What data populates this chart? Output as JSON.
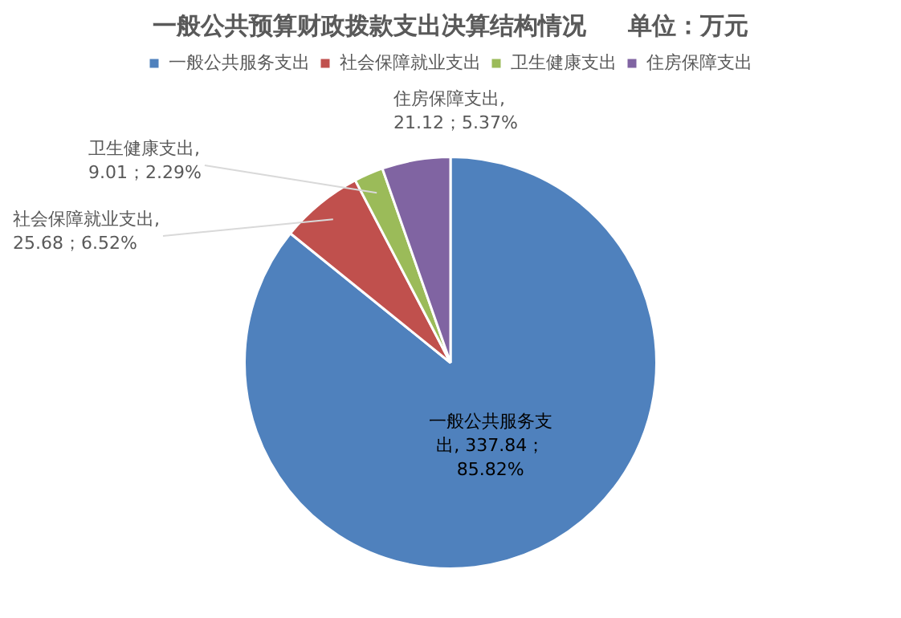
{
  "chart_data": {
    "type": "pie",
    "title": "一般公共预算财政拨款支出决算结构情况     单位：万元",
    "categories": [
      "一般公共服务支出",
      "社会保障就业支出",
      "卫生健康支出",
      "住房保障支出"
    ],
    "values": [
      337.84,
      25.68,
      9.01,
      21.12
    ],
    "colors": [
      "#4f81bd",
      "#c0504d",
      "#9bbb59",
      "#8064a2"
    ],
    "value_labels": [
      "一般公共服务支出, 337.84；85.82%",
      "社会保障就业支出, 25.68；6.52%",
      "卫生健康支出, 9.01；2.29%",
      "住房保障支出, 21.12；5.37%"
    ],
    "legend": "top"
  }
}
